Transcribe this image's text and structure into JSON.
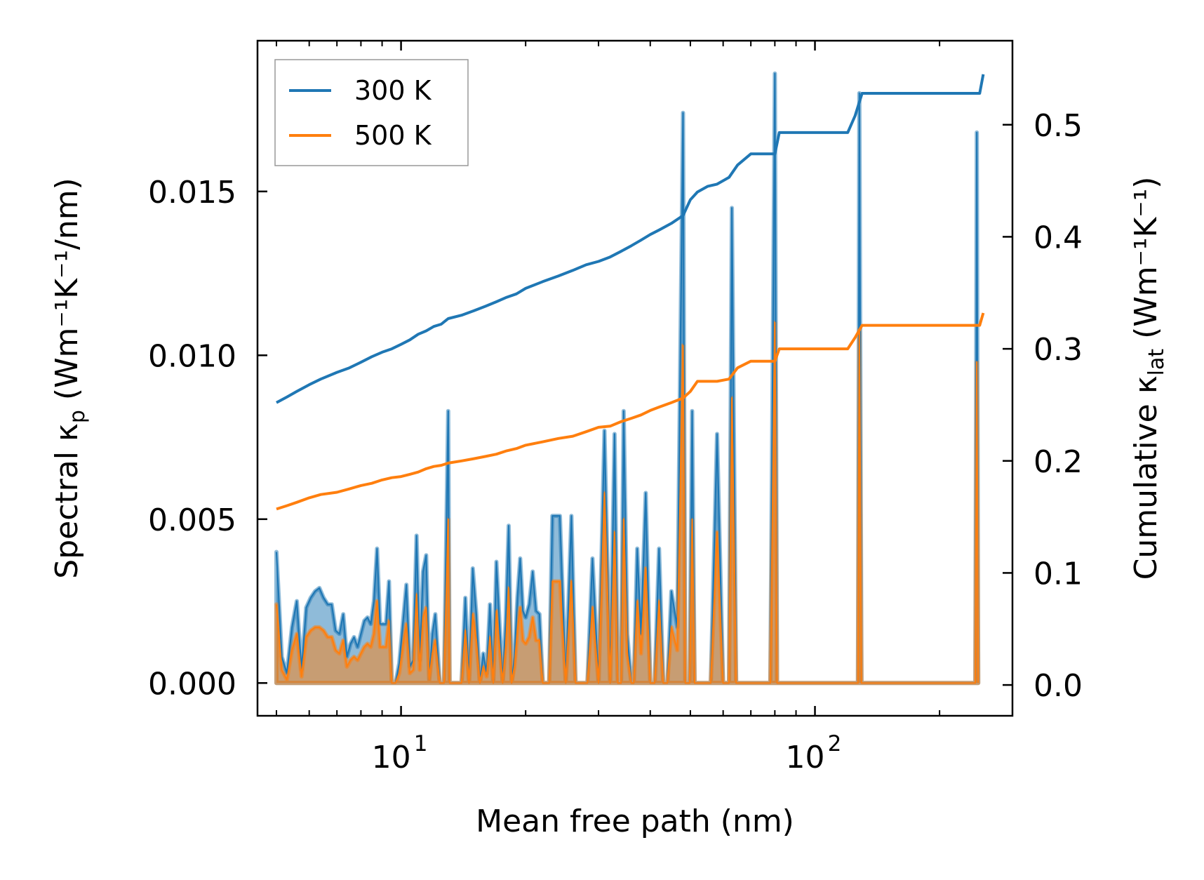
{
  "chart_data": {
    "type": "line",
    "xlabel": "Mean free path (nm)",
    "ylabel_left": "Spectral κ",
    "ylabel_left_sub": "p",
    "ylabel_left_unit": "(Wm⁻¹K⁻¹/nm)",
    "ylabel_right": "Cumulative κ",
    "ylabel_right_sub": "lat",
    "ylabel_right_unit": "(Wm⁻¹K⁻¹)",
    "xscale": "log",
    "xlim": [
      4.5,
      300
    ],
    "ylim_left": [
      -0.001,
      0.0196
    ],
    "ylim_right": [
      -0.0275,
      0.575
    ],
    "x_major_ticks": [
      10,
      100
    ],
    "x_major_tick_labels": [
      {
        "base": "10",
        "exp": "1"
      },
      {
        "base": "10",
        "exp": "2"
      }
    ],
    "y_left_ticks": [
      0.0,
      0.005,
      0.01,
      0.015
    ],
    "y_left_tick_labels": [
      "0.000",
      "0.005",
      "0.010",
      "0.015"
    ],
    "y_right_ticks": [
      0.0,
      0.1,
      0.2,
      0.3,
      0.4,
      0.5
    ],
    "y_right_tick_labels": [
      "0.0",
      "0.1",
      "0.2",
      "0.3",
      "0.4",
      "0.5"
    ],
    "legend_position": "upper-left",
    "legend": [
      "300 K",
      "500 K"
    ],
    "colors": {
      "300 K": "#1f77b4",
      "500 K": "#ff7f0e"
    },
    "cumulative_series": [
      {
        "name": "300 K",
        "axis": "right",
        "x": [
          5,
          5.3,
          5.6,
          6,
          6.4,
          7,
          7.5,
          8,
          8.5,
          9,
          9.5,
          10,
          10.5,
          11,
          11.5,
          12,
          12.5,
          13,
          14,
          15,
          16,
          17,
          18,
          19,
          20,
          22,
          24,
          26,
          28,
          30,
          32,
          34,
          36,
          38,
          40,
          42,
          45,
          48,
          50,
          52,
          55,
          58,
          62,
          65,
          70,
          75,
          80,
          82,
          90,
          100,
          110,
          120,
          125,
          130,
          140,
          160,
          200,
          230,
          250,
          255
        ],
        "y": [
          0.252,
          0.257,
          0.262,
          0.268,
          0.273,
          0.279,
          0.283,
          0.288,
          0.293,
          0.297,
          0.3,
          0.304,
          0.308,
          0.313,
          0.316,
          0.32,
          0.322,
          0.327,
          0.33,
          0.334,
          0.338,
          0.342,
          0.346,
          0.349,
          0.354,
          0.36,
          0.365,
          0.37,
          0.375,
          0.378,
          0.382,
          0.387,
          0.392,
          0.397,
          0.402,
          0.406,
          0.412,
          0.419,
          0.433,
          0.44,
          0.445,
          0.447,
          0.453,
          0.464,
          0.474,
          0.474,
          0.474,
          0.493,
          0.493,
          0.493,
          0.493,
          0.493,
          0.508,
          0.528,
          0.528,
          0.528,
          0.528,
          0.528,
          0.528,
          0.545
        ]
      },
      {
        "name": "500 K",
        "axis": "right",
        "x": [
          5,
          5.3,
          5.6,
          6,
          6.4,
          7,
          7.5,
          8,
          8.5,
          9,
          9.5,
          10,
          10.5,
          11,
          11.5,
          12,
          12.5,
          13,
          14,
          15,
          16,
          17,
          18,
          19,
          20,
          22,
          24,
          26,
          28,
          30,
          32,
          34,
          36,
          38,
          40,
          42,
          45,
          48,
          50,
          52,
          55,
          58,
          62,
          65,
          70,
          75,
          80,
          82,
          90,
          100,
          110,
          120,
          125,
          130,
          140,
          160,
          200,
          230,
          250,
          255
        ],
        "y": [
          0.157,
          0.16,
          0.163,
          0.167,
          0.17,
          0.172,
          0.175,
          0.178,
          0.18,
          0.183,
          0.185,
          0.186,
          0.188,
          0.19,
          0.193,
          0.195,
          0.196,
          0.198,
          0.2,
          0.202,
          0.204,
          0.206,
          0.209,
          0.211,
          0.214,
          0.217,
          0.22,
          0.222,
          0.226,
          0.23,
          0.231,
          0.235,
          0.238,
          0.241,
          0.245,
          0.248,
          0.252,
          0.256,
          0.262,
          0.271,
          0.271,
          0.271,
          0.273,
          0.283,
          0.289,
          0.289,
          0.289,
          0.3,
          0.3,
          0.3,
          0.3,
          0.3,
          0.31,
          0.321,
          0.321,
          0.321,
          0.321,
          0.321,
          0.321,
          0.332
        ]
      }
    ],
    "spectral_series": [
      {
        "name": "300 K",
        "axis": "left",
        "x": [
          5,
          5.15,
          5.3,
          5.45,
          5.6,
          5.75,
          5.9,
          6.05,
          6.2,
          6.35,
          6.5,
          6.65,
          6.8,
          6.95,
          7.1,
          7.25,
          7.4,
          7.55,
          7.7,
          7.85,
          8.0,
          8.15,
          8.3,
          8.45,
          8.6,
          8.75,
          8.9,
          9.05,
          9.2,
          9.35,
          9.5,
          9.7,
          9.9,
          10.1,
          10.3,
          10.5,
          10.7,
          10.9,
          11.1,
          11.3,
          11.5,
          11.7,
          11.9,
          12.1,
          12.4,
          12.7,
          13.0,
          13.1,
          13.2,
          13.4,
          13.7,
          14.0,
          14.3,
          14.6,
          14.9,
          15.2,
          15.5,
          15.8,
          16.1,
          16.4,
          16.7,
          17.0,
          17.3,
          17.6,
          17.9,
          18.2,
          18.5,
          18.8,
          19.1,
          19.4,
          19.7,
          20.0,
          20.4,
          20.8,
          21.2,
          21.6,
          22.0,
          22.4,
          22.8,
          23.2,
          24.2,
          25.0,
          25.8,
          26.4,
          27.0,
          27.6,
          28.2,
          29.0,
          30.0,
          31.0,
          32.0,
          32.8,
          33.4,
          34.0,
          34.5,
          35.2,
          36.0,
          36.5,
          37.2,
          38.0,
          39.0,
          40.0,
          41.0,
          42.0,
          43.0,
          44.0,
          45.0,
          46.5,
          48.0,
          48.6,
          49.2,
          49.8,
          50.5,
          51.2,
          52.0,
          52.8,
          53.6,
          54.5,
          56.0,
          58.0,
          60.0,
          61.0,
          62.0,
          63.0,
          64.5,
          66.0,
          67.0,
          68.0,
          70.0,
          75.0,
          78.0,
          80.0,
          81.0,
          82.0,
          83.0,
          84.5,
          90.0,
          100.0,
          110.0,
          120.0,
          123.0,
          125.5,
          127.0,
          128.0,
          129.5,
          131.0,
          133.0,
          150.0,
          200.0,
          240.0,
          244.0,
          246.0,
          248.0
        ],
        "y": [
          0.004,
          0.0008,
          0.0003,
          0.0017,
          0.0025,
          0.0004,
          0.0023,
          0.0026,
          0.0028,
          0.0029,
          0.0026,
          0.0024,
          0.0024,
          0.0016,
          0.0015,
          0.0021,
          0.0008,
          0.0012,
          0.0014,
          0.0011,
          0.0015,
          0.0019,
          0.002,
          0.0018,
          0.0025,
          0.0041,
          0.0018,
          0.0018,
          0.0018,
          0.0031,
          0.0,
          0.0,
          0.0006,
          0.0018,
          0.003,
          0.0005,
          0.0007,
          0.0045,
          0.0007,
          0.0034,
          0.0039,
          0.0001,
          0.0015,
          0.0021,
          0.0,
          0.0,
          0.0083,
          0.0,
          0.0,
          0.0,
          0.0,
          0.0,
          0.0026,
          0.0,
          0.0035,
          0.0021,
          0.0,
          0.0009,
          0.0003,
          0.0024,
          0.0,
          0.0037,
          0.0018,
          0.0,
          0.0019,
          0.0048,
          0.0,
          0.0008,
          0.0026,
          0.0038,
          0.0022,
          0.002,
          0.0024,
          0.0034,
          0.0022,
          0.0021,
          0.0,
          0.0,
          0.0,
          0.0051,
          0.0051,
          0.0,
          0.0051,
          0.0,
          0.0,
          0.0,
          0.0,
          0.0038,
          0.0,
          0.0077,
          0.0,
          0.0076,
          0.0,
          0.0,
          0.0083,
          0.0015,
          0.0,
          0.0,
          0.0041,
          0.0015,
          0.0058,
          0.0,
          0.0,
          0.0041,
          0.0,
          0.0,
          0.0028,
          0.0017,
          0.0174,
          0.0,
          0.0,
          0.0,
          0.0083,
          0.0,
          0.0,
          0.0,
          0.0,
          0.0,
          0.0,
          0.0076,
          0.0,
          0.0,
          0.0,
          0.0145,
          0.0,
          0.0,
          0.0,
          0.0,
          0.0,
          0.0,
          0.0,
          0.0186,
          0.0,
          0.0,
          0.0,
          0.0,
          0.0,
          0.0,
          0.0,
          0.0,
          0.0,
          0.0,
          0.0,
          0.018,
          0.0,
          0.0,
          0.0,
          0.0,
          0.0,
          0.0,
          0.0,
          0.0168,
          0.0
        ]
      },
      {
        "name": "500 K",
        "axis": "left",
        "x": [
          5,
          5.15,
          5.3,
          5.45,
          5.6,
          5.75,
          5.9,
          6.05,
          6.2,
          6.35,
          6.5,
          6.65,
          6.8,
          6.95,
          7.1,
          7.25,
          7.4,
          7.55,
          7.7,
          7.85,
          8.0,
          8.15,
          8.3,
          8.45,
          8.6,
          8.75,
          8.9,
          9.05,
          9.2,
          9.35,
          9.5,
          9.7,
          9.9,
          10.1,
          10.3,
          10.5,
          10.7,
          10.9,
          11.1,
          11.3,
          11.5,
          11.7,
          11.9,
          12.1,
          12.4,
          12.7,
          13.0,
          13.1,
          13.2,
          13.4,
          13.7,
          14.0,
          14.3,
          14.6,
          14.9,
          15.2,
          15.5,
          15.8,
          16.1,
          16.4,
          16.7,
          17.0,
          17.3,
          17.6,
          17.9,
          18.2,
          18.5,
          18.8,
          19.1,
          19.4,
          19.7,
          20.0,
          20.4,
          20.8,
          21.2,
          21.6,
          22.0,
          22.4,
          22.8,
          23.2,
          24.2,
          25.0,
          25.8,
          26.4,
          27.0,
          27.6,
          28.2,
          29.0,
          30.0,
          31.0,
          32.0,
          32.8,
          33.4,
          34.0,
          34.5,
          35.2,
          36.0,
          36.5,
          37.2,
          38.0,
          39.0,
          40.0,
          41.0,
          42.0,
          43.0,
          44.0,
          45.0,
          46.5,
          48.0,
          48.6,
          49.2,
          49.8,
          50.5,
          51.2,
          52.0,
          52.8,
          53.6,
          54.5,
          56.0,
          58.0,
          60.0,
          61.0,
          62.0,
          63.0,
          64.5,
          66.0,
          67.0,
          68.0,
          70.0,
          75.0,
          78.0,
          80.0,
          81.0,
          82.0,
          83.0,
          84.5,
          90.0,
          100.0,
          110.0,
          120.0,
          123.0,
          125.5,
          127.0,
          128.0,
          129.5,
          131.0,
          133.0,
          150.0,
          200.0,
          240.0,
          244.0,
          246.0,
          248.0
        ],
        "y": [
          0.0024,
          0.0004,
          0.0001,
          0.001,
          0.0015,
          0.0002,
          0.0014,
          0.0016,
          0.0017,
          0.0017,
          0.0016,
          0.0014,
          0.0014,
          0.001,
          0.0009,
          0.0013,
          0.0005,
          0.0007,
          0.0008,
          0.0007,
          0.0009,
          0.0011,
          0.0012,
          0.0011,
          0.0015,
          0.0025,
          0.0011,
          0.0011,
          0.0011,
          0.0019,
          0.0,
          0.0,
          0.0003,
          0.0011,
          0.0018,
          0.0003,
          0.0004,
          0.0027,
          0.0004,
          0.002,
          0.0023,
          0.0001,
          0.0009,
          0.0013,
          0.0,
          0.0,
          0.005,
          0.0,
          0.0,
          0.0,
          0.0,
          0.0,
          0.0016,
          0.0,
          0.0021,
          0.0013,
          0.0,
          0.0005,
          0.0002,
          0.0014,
          0.0,
          0.0022,
          0.0011,
          0.0,
          0.0011,
          0.0029,
          0.0,
          0.0005,
          0.0016,
          0.0023,
          0.0013,
          0.0012,
          0.0014,
          0.002,
          0.0013,
          0.0013,
          0.0,
          0.0,
          0.0,
          0.0031,
          0.0031,
          0.0,
          0.0031,
          0.0,
          0.0,
          0.0,
          0.0,
          0.0023,
          0.0,
          0.0058,
          0.0,
          0.0046,
          0.0,
          0.0,
          0.005,
          0.0009,
          0.0,
          0.0,
          0.0025,
          0.0009,
          0.0035,
          0.0,
          0.0,
          0.0025,
          0.0,
          0.0,
          0.0017,
          0.001,
          0.0103,
          0.0,
          0.0,
          0.0,
          0.005,
          0.0,
          0.0,
          0.0,
          0.0,
          0.0,
          0.0,
          0.0046,
          0.0,
          0.0,
          0.0,
          0.0087,
          0.0,
          0.0,
          0.0,
          0.0,
          0.0,
          0.0,
          0.0,
          0.011,
          0.0,
          0.0,
          0.0,
          0.0,
          0.0,
          0.0,
          0.0,
          0.0,
          0.0,
          0.0,
          0.0,
          0.0108,
          0.0,
          0.0,
          0.0,
          0.0,
          0.0,
          0.0,
          0.0,
          0.0098,
          0.0
        ]
      }
    ]
  }
}
